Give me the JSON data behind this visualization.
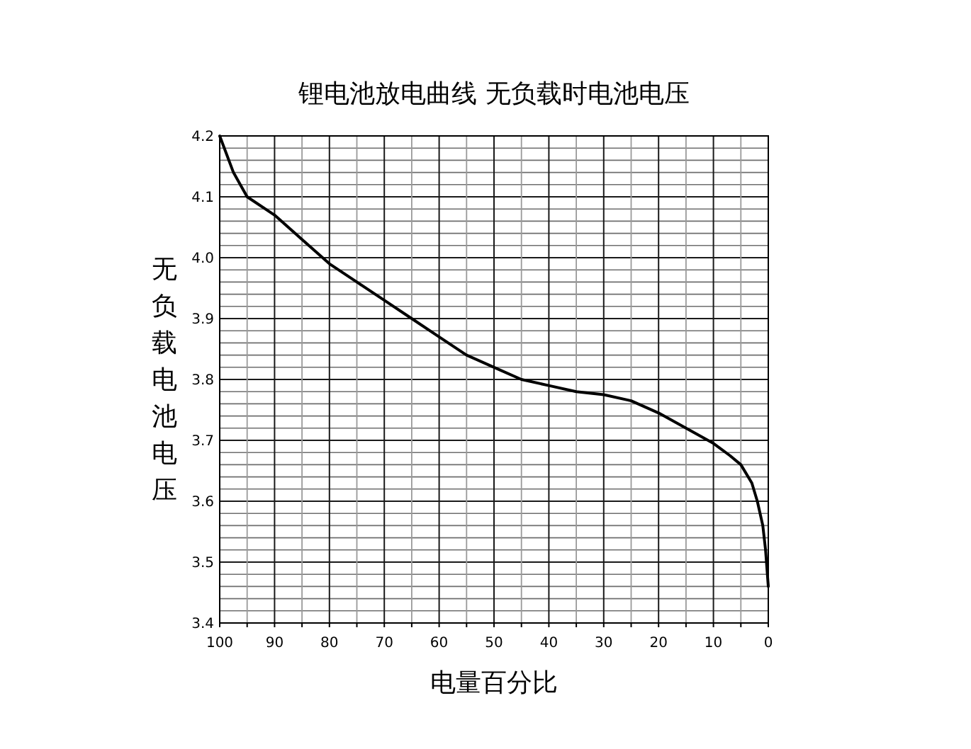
{
  "chart_data": {
    "type": "line",
    "title": "锂电池放电曲线  无负载时电池电压",
    "xlabel": "电量百分比",
    "ylabel": "无负载电池电压",
    "xlim": [
      100,
      0
    ],
    "ylim": [
      3.4,
      4.2
    ],
    "xticks": [
      100,
      {
        "value": 95,
        "label": null
      },
      90,
      {
        "value": 85,
        "label": null
      },
      80,
      {
        "value": 75,
        "label": null
      },
      70,
      {
        "value": 65,
        "label": null
      },
      60,
      {
        "value": 55,
        "label": null
      },
      50,
      {
        "value": 45,
        "label": null
      },
      40,
      {
        "value": 35,
        "label": null
      },
      30,
      {
        "value": 25,
        "label": null
      },
      20,
      {
        "value": 15,
        "label": null
      },
      10,
      {
        "value": 5,
        "label": null
      },
      0
    ],
    "yticks": [
      {
        "value": 3.4,
        "label": "3.4"
      },
      {
        "value": 3.42,
        "label": null
      },
      {
        "value": 3.44,
        "label": null
      },
      {
        "value": 3.46,
        "label": null
      },
      {
        "value": 3.48,
        "label": null
      },
      {
        "value": 3.5,
        "label": "3.5"
      },
      {
        "value": 3.52,
        "label": null
      },
      {
        "value": 3.54,
        "label": null
      },
      {
        "value": 3.56,
        "label": null
      },
      {
        "value": 3.58,
        "label": null
      },
      {
        "value": 3.6,
        "label": "3.6"
      },
      {
        "value": 3.62,
        "label": null
      },
      {
        "value": 3.64,
        "label": null
      },
      {
        "value": 3.66,
        "label": null
      },
      {
        "value": 3.68,
        "label": null
      },
      {
        "value": 3.7,
        "label": "3.7"
      },
      {
        "value": 3.72,
        "label": null
      },
      {
        "value": 3.74,
        "label": null
      },
      {
        "value": 3.76,
        "label": null
      },
      {
        "value": 3.78,
        "label": null
      },
      {
        "value": 3.8,
        "label": "3.8"
      },
      {
        "value": 3.82,
        "label": null
      },
      {
        "value": 3.84,
        "label": null
      },
      {
        "value": 3.86,
        "label": null
      },
      {
        "value": 3.88,
        "label": null
      },
      {
        "value": 3.9,
        "label": "3.9"
      },
      {
        "value": 3.92,
        "label": null
      },
      {
        "value": 3.94,
        "label": null
      },
      {
        "value": 3.96,
        "label": null
      },
      {
        "value": 3.98,
        "label": null
      },
      {
        "value": 4.0,
        "label": "4.0"
      },
      {
        "value": 4.02,
        "label": null
      },
      {
        "value": 4.04,
        "label": null
      },
      {
        "value": 4.06,
        "label": null
      },
      {
        "value": 4.08,
        "label": null
      },
      {
        "value": 4.1,
        "label": "4.1"
      },
      {
        "value": 4.12,
        "label": null
      },
      {
        "value": 4.14,
        "label": null
      },
      {
        "value": 4.16,
        "label": null
      },
      {
        "value": 4.18,
        "label": null
      },
      {
        "value": 4.2,
        "label": "4.2"
      }
    ],
    "grid": true,
    "x": [
      100,
      97.5,
      95,
      90,
      85,
      80,
      75,
      70,
      65,
      60,
      55,
      50,
      45,
      40,
      35,
      30,
      25,
      20,
      15,
      10,
      7,
      5,
      3,
      2,
      1,
      0.5,
      0
    ],
    "series": [
      {
        "color": "#000000",
        "values": [
          4.2,
          4.14,
          4.1,
          4.07,
          4.03,
          3.99,
          3.96,
          3.93,
          3.9,
          3.87,
          3.84,
          3.82,
          3.8,
          3.79,
          3.78,
          3.775,
          3.765,
          3.745,
          3.72,
          3.695,
          3.675,
          3.66,
          3.63,
          3.6,
          3.56,
          3.52,
          3.46
        ]
      }
    ]
  }
}
